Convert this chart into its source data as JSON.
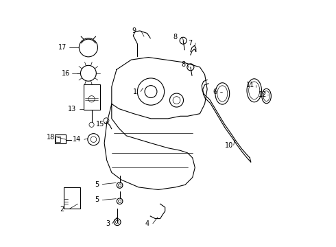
{
  "bg_color": "#ffffff",
  "line_color": "#000000",
  "label_color": "#000000",
  "fig_width": 4.9,
  "fig_height": 3.6,
  "dpi": 100
}
